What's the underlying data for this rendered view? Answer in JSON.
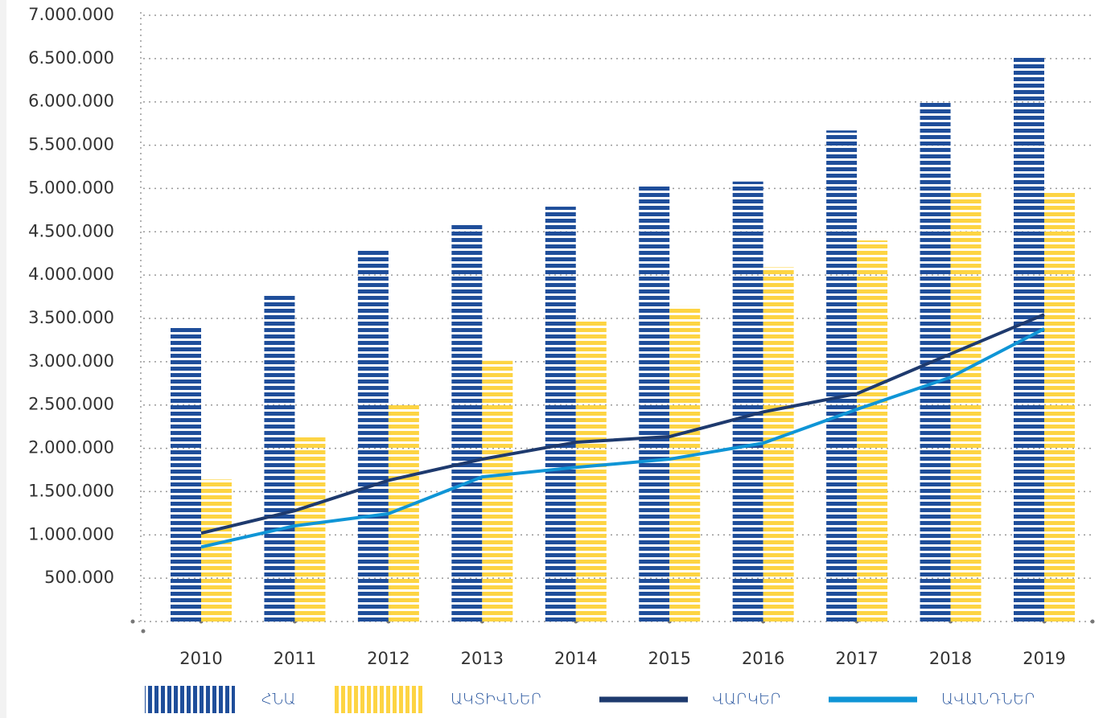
{
  "chart_data": {
    "type": "bar",
    "categories": [
      "2010",
      "2011",
      "2012",
      "2013",
      "2014",
      "2015",
      "2016",
      "2017",
      "2018",
      "2019"
    ],
    "series": [
      {
        "name": "ՀՆԱ",
        "type": "bar",
        "color": "#1f4e9a",
        "values": [
          3400000,
          3780000,
          4300000,
          4580000,
          4790000,
          5030000,
          5080000,
          5670000,
          6010000,
          6510000
        ]
      },
      {
        "name": "ԱԿՏԻՎՆԵՐ",
        "type": "bar",
        "color": "#fdd443",
        "values": [
          1640000,
          2140000,
          2500000,
          3010000,
          3480000,
          3640000,
          4090000,
          4400000,
          4960000,
          4960000
        ]
      },
      {
        "name": "ՎԱՐԿԵՐ",
        "type": "line",
        "color": "#1e3a6e",
        "values": [
          1020000,
          1280000,
          1630000,
          1875000,
          2070000,
          2135000,
          2420000,
          2630000,
          3090000,
          3545000
        ]
      },
      {
        "name": "ԱՎԱՆԴՆԵՐ",
        "type": "line",
        "color": "#0f95d6",
        "values": [
          860000,
          1105000,
          1245000,
          1670000,
          1780000,
          1875000,
          2060000,
          2450000,
          2820000,
          3380000
        ]
      }
    ],
    "ylim": [
      0,
      7000000
    ],
    "yticks": [
      {
        "value": 500000,
        "label": "500.000"
      },
      {
        "value": 1000000,
        "label": "1.000.000"
      },
      {
        "value": 1500000,
        "label": "1.500.000"
      },
      {
        "value": 2000000,
        "label": "2.000.000"
      },
      {
        "value": 2500000,
        "label": "2.500.000"
      },
      {
        "value": 3000000,
        "label": "3.000.000"
      },
      {
        "value": 3500000,
        "label": "3.500.000"
      },
      {
        "value": 4000000,
        "label": "4.000.000"
      },
      {
        "value": 4500000,
        "label": "4.500.000"
      },
      {
        "value": 5000000,
        "label": "5.000.000"
      },
      {
        "value": 5500000,
        "label": "5.500.000"
      },
      {
        "value": 6000000,
        "label": "6.000.000"
      },
      {
        "value": 6500000,
        "label": "6.500.000"
      },
      {
        "value": 7000000,
        "label": "7.000.000"
      }
    ],
    "grid": true
  }
}
